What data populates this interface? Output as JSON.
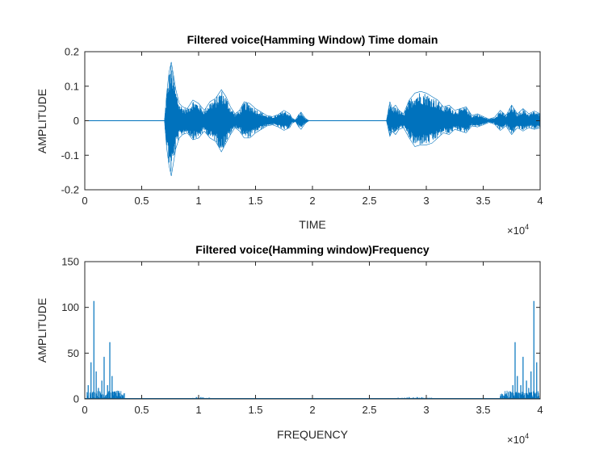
{
  "colors": {
    "series": "#0072BD",
    "axis": "#262626",
    "background": "#ffffff"
  },
  "chart_data": [
    {
      "type": "line",
      "title": "Filtered voice(Hamming Window) Time domain",
      "xlabel": "TIME",
      "ylabel": "AMPLITUDE",
      "xlim": [
        0,
        40000
      ],
      "ylim": [
        -0.2,
        0.2
      ],
      "x_exponent_label": "×10",
      "x_exponent": "4",
      "xticks": [
        0,
        5000,
        10000,
        15000,
        20000,
        25000,
        30000,
        35000,
        40000
      ],
      "xtick_labels": [
        "0",
        "0.5",
        "1",
        "1.5",
        "2",
        "2.5",
        "3",
        "3.5",
        "4"
      ],
      "yticks": [
        -0.2,
        -0.1,
        0,
        0.1,
        0.2
      ],
      "ytick_labels": [
        "-0.2",
        "-0.1",
        "0",
        "0.1",
        "0.2"
      ],
      "grid": false,
      "series": [
        {
          "envelope_x": [
            0,
            7000,
            7200,
            7400,
            7600,
            7800,
            8000,
            8300,
            8600,
            9000,
            9500,
            10000,
            10500,
            11000,
            11500,
            12000,
            12400,
            12800,
            13200,
            13600,
            14000,
            14500,
            15000,
            15500,
            16000,
            16500,
            17000,
            17500,
            18000,
            18200,
            18500,
            18800,
            19000,
            19300,
            19500,
            19700,
            26500,
            26800,
            27000,
            27300,
            27600,
            28000,
            28500,
            29000,
            29500,
            30000,
            30500,
            31000,
            31500,
            32000,
            32500,
            33000,
            33500,
            34000,
            34500,
            35000,
            35500,
            36000,
            36500,
            37000,
            37500,
            38000,
            38500,
            39000,
            39500,
            40000
          ],
          "envelope_upper": [
            0,
            0,
            0.08,
            0.14,
            0.17,
            0.13,
            0.09,
            0.05,
            0.04,
            0.035,
            0.06,
            0.05,
            0.03,
            0.055,
            0.065,
            0.09,
            0.07,
            0.04,
            0.02,
            0.03,
            0.055,
            0.05,
            0.035,
            0.025,
            0.015,
            0.012,
            0.018,
            0.03,
            0.02,
            0.008,
            0.002,
            0.018,
            0.025,
            0.01,
            0.004,
            0,
            0,
            0.055,
            0.035,
            0.045,
            0.03,
            0.02,
            0.06,
            0.08,
            0.085,
            0.08,
            0.07,
            0.06,
            0.04,
            0.045,
            0.03,
            0.035,
            0.04,
            0.015,
            0.02,
            0.012,
            0.005,
            0.01,
            0.03,
            0.015,
            0.045,
            0.02,
            0.035,
            0.02,
            0.028,
            0.02
          ],
          "envelope_lower": [
            0,
            0,
            -0.08,
            -0.13,
            -0.16,
            -0.12,
            -0.08,
            -0.05,
            -0.04,
            -0.035,
            -0.055,
            -0.05,
            -0.03,
            -0.05,
            -0.06,
            -0.09,
            -0.065,
            -0.04,
            -0.02,
            -0.03,
            -0.05,
            -0.05,
            -0.035,
            -0.025,
            -0.015,
            -0.012,
            -0.018,
            -0.028,
            -0.02,
            -0.008,
            -0.002,
            -0.018,
            -0.025,
            -0.01,
            -0.004,
            0,
            0,
            -0.045,
            -0.03,
            -0.04,
            -0.025,
            -0.02,
            -0.05,
            -0.075,
            -0.07,
            -0.07,
            -0.065,
            -0.05,
            -0.035,
            -0.04,
            -0.025,
            -0.03,
            -0.035,
            -0.015,
            -0.018,
            -0.012,
            -0.005,
            -0.01,
            -0.028,
            -0.015,
            -0.04,
            -0.02,
            -0.03,
            -0.02,
            -0.025,
            -0.02
          ]
        }
      ]
    },
    {
      "type": "line",
      "title": "Filtered voice(Hamming window)Frequency",
      "xlabel": "FREQUENCY",
      "ylabel": "AMPLITUDE",
      "xlim": [
        0,
        40000
      ],
      "ylim": [
        0,
        150
      ],
      "x_exponent_label": "×10",
      "x_exponent": "4",
      "xticks": [
        0,
        5000,
        10000,
        15000,
        20000,
        25000,
        30000,
        35000,
        40000
      ],
      "xtick_labels": [
        "0",
        "0.5",
        "1",
        "1.5",
        "2",
        "2.5",
        "3",
        "3.5",
        "4"
      ],
      "yticks": [
        0,
        50,
        100,
        150
      ],
      "ytick_labels": [
        "0",
        "50",
        "100",
        "150"
      ],
      "grid": false,
      "series": [
        {
          "peaks_x": [
            300,
            550,
            800,
            1000,
            1200,
            1500,
            1700,
            2000,
            2200,
            2400,
            2600,
            3000,
            3300,
            9800,
            10200,
            28500,
            29200,
            36700,
            37000,
            37400,
            37600,
            37800,
            38000,
            38300,
            38500,
            38800,
            39000,
            39200,
            39450,
            39700
          ],
          "peaks_y": [
            15,
            40,
            107,
            30,
            12,
            20,
            46,
            15,
            62,
            25,
            8,
            5,
            3,
            2,
            2,
            2,
            2,
            3,
            5,
            8,
            15,
            62,
            25,
            15,
            46,
            20,
            12,
            30,
            107,
            40
          ]
        }
      ]
    }
  ]
}
